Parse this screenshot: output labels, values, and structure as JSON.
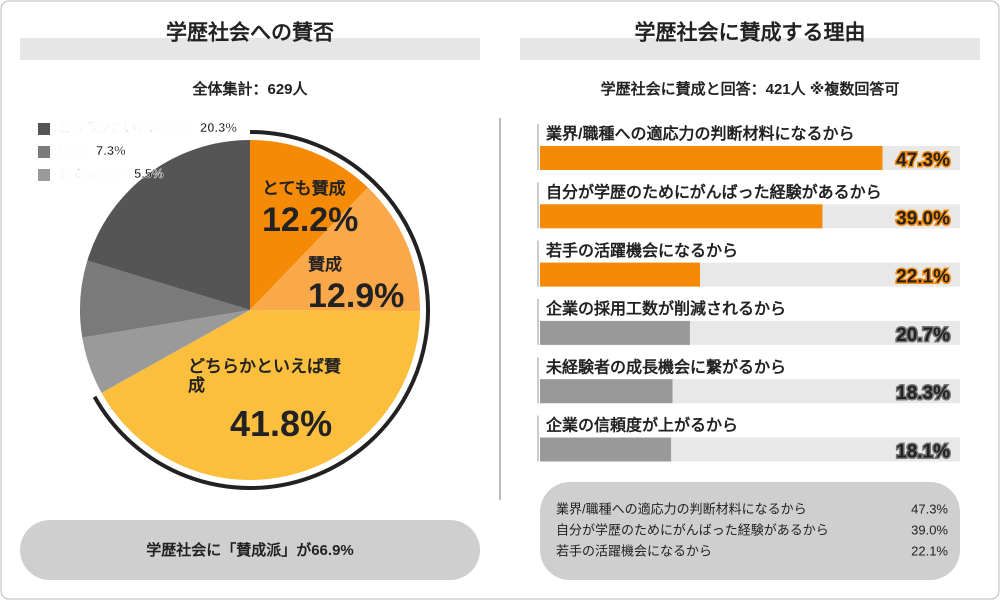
{
  "chart_data": [
    {
      "type": "pie",
      "title": "学歴社会への賛否",
      "subtitle": "全体集計：629人",
      "categories": [
        "とても賛成",
        "賛成",
        "どちらかといえば賛成",
        "とても反対",
        "反対",
        "どちらかといえば反対"
      ],
      "values": [
        12.2,
        12.9,
        41.8,
        5.5,
        7.3,
        20.3
      ],
      "value_labels": [
        "12.2%",
        "12.9%",
        "41.8%",
        "5.5%",
        "7.3%",
        "20.3%"
      ],
      "colors": [
        "#f58a07",
        "#f9a84a",
        "#fbbf3d",
        "#9a9a9a",
        "#7a7a7a",
        "#555555"
      ],
      "legend": "upper left",
      "annotation": "学歴社会に「賛成派」が66.9%"
    },
    {
      "type": "bar",
      "orientation": "horizontal",
      "title": "学歴社会に賛成する理由",
      "subtitle": "学歴社会に賛成と回答：421人 ※複数回答可",
      "categories": [
        "業界/職種への適応力の判断材料になるから",
        "自分が学歴のためにがんばった経験があるから",
        "若手の活躍機会になるから",
        "企業の採用工数が削減されるから",
        "未経験者の成長機会に繋がるから",
        "企業の信頼度が上がるから"
      ],
      "values": [
        47.3,
        39.0,
        22.1,
        20.7,
        18.3,
        18.1
      ],
      "value_labels": [
        "47.3%",
        "39.0%",
        "22.1%",
        "20.7%",
        "18.3%",
        "18.1%"
      ],
      "colors": [
        "#f58a07",
        "#f58a07",
        "#f58a07",
        "#999999",
        "#999999",
        "#999999"
      ],
      "xlim": [
        0,
        58
      ]
    }
  ]
}
